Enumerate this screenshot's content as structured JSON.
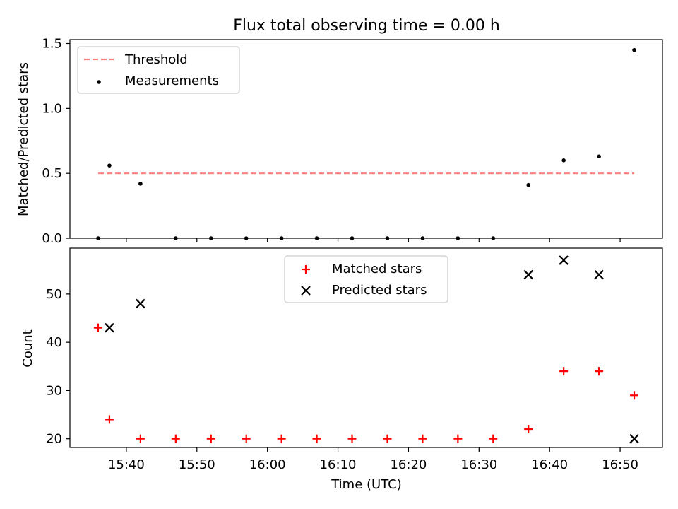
{
  "title": "Flux total observing time = 0.00 h",
  "chart_data": [
    {
      "type": "scatter",
      "ylabel": "Matched/Predicted stars",
      "ylim": [
        0,
        1.53
      ],
      "yticks": [
        "0.0",
        "0.5",
        "1.0",
        "1.5"
      ],
      "ytick_values": [
        0,
        0.5,
        1.0,
        1.5
      ],
      "legend_position": "top-left",
      "threshold": {
        "name": "Threshold",
        "value": 0.5,
        "x_start": "15:36",
        "x_end": "16:52",
        "color": "#ff7f7f"
      },
      "series": [
        {
          "name": "Measurements",
          "color": "#000000",
          "points": [
            [
              "15:36",
              0.0
            ],
            [
              "15:37.6",
              0.56
            ],
            [
              "15:42",
              0.42
            ],
            [
              "15:47",
              0.0
            ],
            [
              "15:52",
              0.0
            ],
            [
              "15:57",
              0.0
            ],
            [
              "16:02",
              0.0
            ],
            [
              "16:07",
              0.0
            ],
            [
              "16:12",
              0.0
            ],
            [
              "16:17",
              0.0
            ],
            [
              "16:22",
              0.0
            ],
            [
              "16:27",
              0.0
            ],
            [
              "16:32",
              0.0
            ],
            [
              "16:37",
              0.41
            ],
            [
              "16:42",
              0.6
            ],
            [
              "16:47",
              0.63
            ],
            [
              "16:52",
              1.45
            ]
          ]
        }
      ]
    },
    {
      "type": "scatter",
      "xlabel": "Time (UTC)",
      "ylabel": "Count",
      "ylim": [
        18.2,
        59.5
      ],
      "yticks": [
        "20",
        "30",
        "40",
        "50"
      ],
      "ytick_values": [
        20,
        30,
        40,
        50
      ],
      "xticks": [
        "15:40",
        "15:50",
        "16:00",
        "16:10",
        "16:20",
        "16:30",
        "16:40",
        "16:50"
      ],
      "xlim": [
        "15:32",
        "16:56"
      ],
      "legend_position": "top-center",
      "series": [
        {
          "name": "Matched stars",
          "color": "#ff0000",
          "marker": "+",
          "points": [
            [
              "15:36",
              43
            ],
            [
              "15:37.6",
              24
            ],
            [
              "15:42",
              20
            ],
            [
              "15:47",
              20
            ],
            [
              "15:52",
              20
            ],
            [
              "15:57",
              20
            ],
            [
              "16:02",
              20
            ],
            [
              "16:07",
              20
            ],
            [
              "16:12",
              20
            ],
            [
              "16:17",
              20
            ],
            [
              "16:22",
              20
            ],
            [
              "16:27",
              20
            ],
            [
              "16:32",
              20
            ],
            [
              "16:37",
              22
            ],
            [
              "16:42",
              34
            ],
            [
              "16:47",
              34
            ],
            [
              "16:52",
              29
            ]
          ]
        },
        {
          "name": "Predicted stars",
          "color": "#000000",
          "marker": "x",
          "points": [
            [
              "15:37.6",
              43
            ],
            [
              "15:42",
              48
            ],
            [
              "16:37",
              54
            ],
            [
              "16:42",
              57
            ],
            [
              "16:47",
              54
            ],
            [
              "16:52",
              20
            ]
          ]
        }
      ]
    }
  ]
}
